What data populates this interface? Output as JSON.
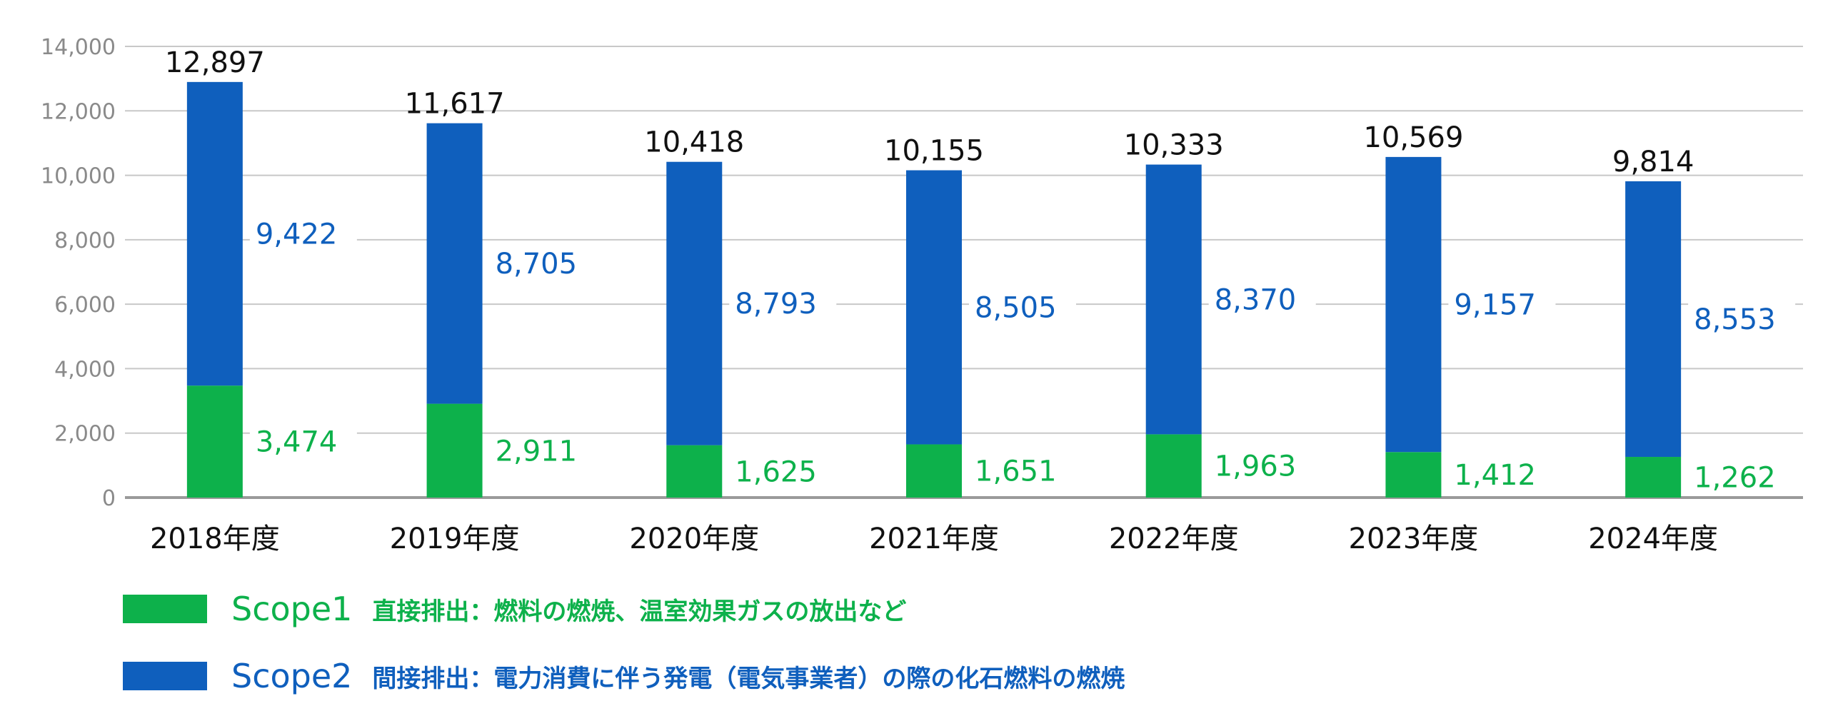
{
  "chart_data": {
    "type": "bar",
    "stacked": true,
    "categories": [
      "2018年度",
      "2019年度",
      "2020年度",
      "2021年度",
      "2022年度",
      "2023年度",
      "2024年度"
    ],
    "series": [
      {
        "name": "Scope1",
        "color": "#0db14b",
        "values": [
          3474,
          2911,
          1625,
          1651,
          1963,
          1412,
          1262
        ]
      },
      {
        "name": "Scope2",
        "color": "#0f5fbd",
        "values": [
          9422,
          8705,
          8793,
          8505,
          8370,
          9157,
          8553
        ]
      }
    ],
    "totals": [
      12897,
      11617,
      10418,
      10155,
      10333,
      10569,
      9814
    ],
    "ylim": [
      0,
      14000
    ],
    "yticks": [
      0,
      2000,
      4000,
      6000,
      8000,
      10000,
      12000,
      14000
    ],
    "grid": true,
    "legend_position": "bottom-left"
  },
  "legend": [
    {
      "name": "Scope1",
      "description": "直接排出：燃料の燃焼、温室効果ガスの放出など",
      "color": "#0db14b"
    },
    {
      "name": "Scope2",
      "description": "間接排出：電力消費に伴う発電（電気事業者）の際の化石燃料の燃焼",
      "color": "#0f5fbd"
    }
  ]
}
